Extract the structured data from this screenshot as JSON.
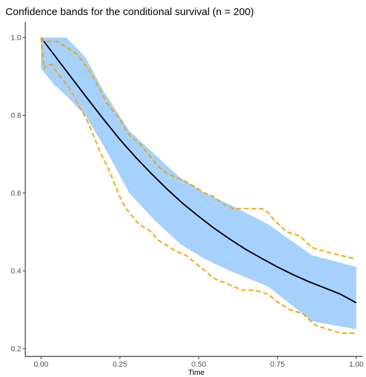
{
  "chart_data": {
    "type": "line",
    "title": "Confidence bands for the conditional survival (n = 200)",
    "xlabel": "Time",
    "ylabel": "",
    "xlim": [
      -0.05,
      1.02
    ],
    "ylim": [
      0.18,
      1.04
    ],
    "x_ticks": [
      0.0,
      0.25,
      0.5,
      0.75,
      1.0
    ],
    "x_tick_labels": [
      "0.00",
      "0.25",
      "0.50",
      "0.75",
      "1.00"
    ],
    "y_ticks": [
      0.2,
      0.4,
      0.6,
      0.8,
      1.0
    ],
    "y_tick_labels": [
      "0.2",
      "0.4",
      "0.6",
      "0.8",
      "1.0"
    ],
    "grid": false,
    "legend": "none",
    "colors": {
      "band": "#a6d1fd",
      "curve": "#000000",
      "dashed": "#f5a300"
    },
    "band": {
      "x": [
        0.0,
        0.04,
        0.08,
        0.14,
        0.2,
        0.28,
        0.36,
        0.44,
        0.52,
        0.6,
        0.72,
        0.86,
        1.0
      ],
      "lower": [
        0.92,
        0.88,
        0.85,
        0.8,
        0.72,
        0.6,
        0.53,
        0.47,
        0.43,
        0.4,
        0.36,
        0.27,
        0.25
      ],
      "upper": [
        1.0,
        1.0,
        1.0,
        0.95,
        0.86,
        0.76,
        0.7,
        0.64,
        0.6,
        0.57,
        0.52,
        0.44,
        0.41
      ]
    },
    "series": [
      {
        "role": "estimate",
        "style": "solid",
        "x": [
          0.0,
          0.05,
          0.1,
          0.15,
          0.2,
          0.25,
          0.3,
          0.35,
          0.4,
          0.45,
          0.5,
          0.55,
          0.6,
          0.65,
          0.7,
          0.75,
          0.8,
          0.85,
          0.9,
          0.95,
          1.0
        ],
        "y": [
          1.0,
          0.946,
          0.893,
          0.84,
          0.788,
          0.738,
          0.692,
          0.65,
          0.61,
          0.573,
          0.54,
          0.509,
          0.481,
          0.455,
          0.432,
          0.41,
          0.39,
          0.372,
          0.356,
          0.34,
          0.318
        ]
      },
      {
        "role": "upper",
        "style": "dashed",
        "x": [
          0.0,
          0.01,
          0.03,
          0.05,
          0.07,
          0.09,
          0.11,
          0.13,
          0.15,
          0.17,
          0.19,
          0.21,
          0.23,
          0.25,
          0.27,
          0.29,
          0.31,
          0.33,
          0.35,
          0.37,
          0.4,
          0.43,
          0.46,
          0.48,
          0.5,
          0.52,
          0.55,
          0.58,
          0.61,
          0.64,
          0.67,
          0.7,
          0.72,
          0.74,
          0.78,
          0.82,
          0.86,
          0.9,
          0.95,
          1.0
        ],
        "y": [
          1.0,
          0.99,
          0.99,
          0.99,
          0.98,
          0.97,
          0.96,
          0.94,
          0.92,
          0.89,
          0.86,
          0.83,
          0.81,
          0.79,
          0.76,
          0.74,
          0.73,
          0.71,
          0.69,
          0.67,
          0.65,
          0.64,
          0.63,
          0.62,
          0.61,
          0.6,
          0.59,
          0.57,
          0.56,
          0.56,
          0.56,
          0.56,
          0.55,
          0.53,
          0.5,
          0.49,
          0.46,
          0.45,
          0.44,
          0.43
        ]
      },
      {
        "role": "lower",
        "style": "dashed",
        "x": [
          0.0,
          0.005,
          0.01,
          0.02,
          0.035,
          0.05,
          0.07,
          0.09,
          0.11,
          0.13,
          0.15,
          0.17,
          0.19,
          0.21,
          0.23,
          0.25,
          0.27,
          0.29,
          0.31,
          0.33,
          0.35,
          0.37,
          0.39,
          0.41,
          0.43,
          0.46,
          0.49,
          0.52,
          0.55,
          0.58,
          0.61,
          0.64,
          0.68,
          0.72,
          0.75,
          0.79,
          0.83,
          0.87,
          0.91,
          0.95,
          1.0
        ],
        "y": [
          1.0,
          0.96,
          0.92,
          0.93,
          0.93,
          0.91,
          0.89,
          0.87,
          0.84,
          0.81,
          0.78,
          0.74,
          0.7,
          0.67,
          0.63,
          0.59,
          0.56,
          0.54,
          0.52,
          0.51,
          0.5,
          0.48,
          0.47,
          0.46,
          0.45,
          0.44,
          0.42,
          0.4,
          0.38,
          0.37,
          0.36,
          0.35,
          0.35,
          0.34,
          0.32,
          0.3,
          0.29,
          0.26,
          0.25,
          0.24,
          0.24
        ]
      }
    ]
  }
}
